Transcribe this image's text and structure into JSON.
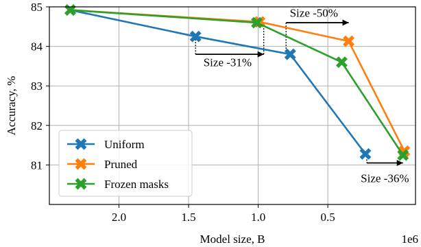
{
  "chart_data": {
    "type": "line",
    "xlabel": "Model size, B",
    "ylabel": "Accuracy, %",
    "x_offset_label": "1e6",
    "x_inverted": true,
    "xlim": [
      2.5,
      -0.13
    ],
    "ylim": [
      80,
      85
    ],
    "x_ticks": [
      {
        "value": 2.0,
        "label": "2.0"
      },
      {
        "value": 1.5,
        "label": "1.5"
      },
      {
        "value": 1.0,
        "label": "1.0"
      },
      {
        "value": 0.5,
        "label": "0.5"
      }
    ],
    "y_ticks": [
      {
        "value": 81,
        "label": "81"
      },
      {
        "value": 82,
        "label": "82"
      },
      {
        "value": 83,
        "label": "83"
      },
      {
        "value": 84,
        "label": "84"
      },
      {
        "value": 85,
        "label": "85"
      }
    ],
    "grid": true,
    "legend_position": "bottom-left",
    "series": [
      {
        "name": "Uniform",
        "color": "#1f77b4",
        "points": [
          [
            2.35,
            84.92
          ],
          [
            1.45,
            84.25
          ],
          [
            0.77,
            83.8
          ],
          [
            0.23,
            81.28
          ]
        ]
      },
      {
        "name": "Pruned",
        "color": "#ff7f0e",
        "points": [
          [
            2.35,
            84.92
          ],
          [
            0.99,
            84.62
          ],
          [
            0.35,
            84.13
          ],
          [
            -0.05,
            81.35
          ]
        ]
      },
      {
        "name": "Frozen masks",
        "color": "#2ca02c",
        "points": [
          [
            2.35,
            84.92
          ],
          [
            1.01,
            84.6
          ],
          [
            0.4,
            83.6
          ],
          [
            -0.04,
            81.25
          ]
        ]
      }
    ],
    "annotations": [
      {
        "text": "Size -31%",
        "path": [
          [
            1.45,
            84.25
          ],
          [
            1.45,
            83.8
          ],
          [
            0.96,
            83.8
          ],
          [
            0.96,
            84.6
          ]
        ],
        "text_at": [
          1.22,
          83.6
        ]
      },
      {
        "text": "Size -50%",
        "path": [
          [
            0.8,
            83.8
          ],
          [
            0.8,
            84.6
          ],
          [
            0.35,
            84.6
          ]
        ],
        "text_at": [
          0.6,
          84.85
        ]
      },
      {
        "text": "Size -36%",
        "path": [
          [
            0.22,
            81.28
          ],
          [
            0.22,
            81.05
          ],
          [
            -0.04,
            81.05
          ]
        ],
        "text_at": [
          0.09,
          80.67
        ]
      }
    ]
  }
}
